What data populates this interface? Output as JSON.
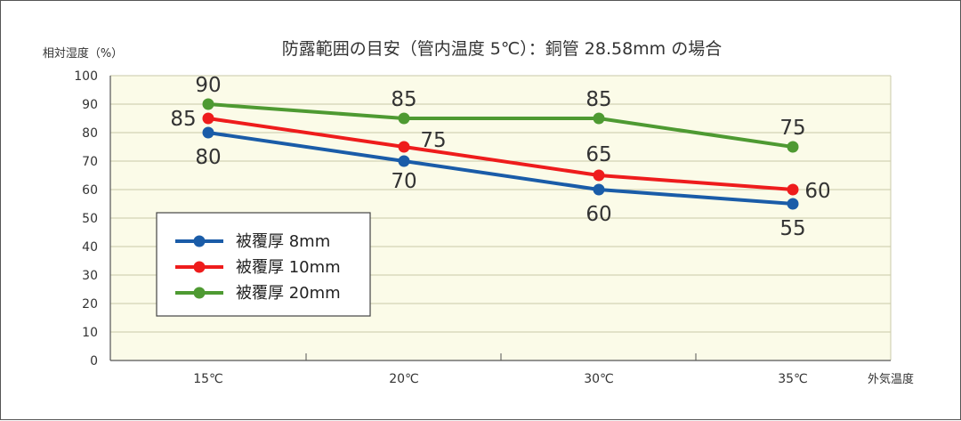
{
  "chart_data": {
    "type": "line",
    "title": "防露範囲の目安（管内温度 5℃）：銅管 28.58mm の場合",
    "ylabel": "相対湿度（%）",
    "xlabel": "外気温度",
    "categories": [
      "15℃",
      "20℃",
      "30℃",
      "35℃"
    ],
    "ylim": [
      0,
      100
    ],
    "yticks": [
      "0",
      "10",
      "20",
      "30",
      "40",
      "50",
      "60",
      "70",
      "80",
      "90",
      "100"
    ],
    "grid": true,
    "legend_position": "bottom-left",
    "plot_background": "#fbfbe8",
    "series": [
      {
        "name": "被覆厚 8mm",
        "color": "#1a5ca8",
        "values": [
          80,
          70,
          60,
          55
        ],
        "labels": [
          "80",
          "70",
          "60",
          "55"
        ]
      },
      {
        "name": "被覆厚 10mm",
        "color": "#ee1c1c",
        "values": [
          85,
          75,
          65,
          60
        ],
        "labels": [
          "85",
          "75",
          "65",
          "60"
        ]
      },
      {
        "name": "被覆厚 20mm",
        "color": "#4e9a32",
        "values": [
          90,
          85,
          85,
          75
        ],
        "labels": [
          "90",
          "85",
          "85",
          "75"
        ]
      }
    ]
  }
}
